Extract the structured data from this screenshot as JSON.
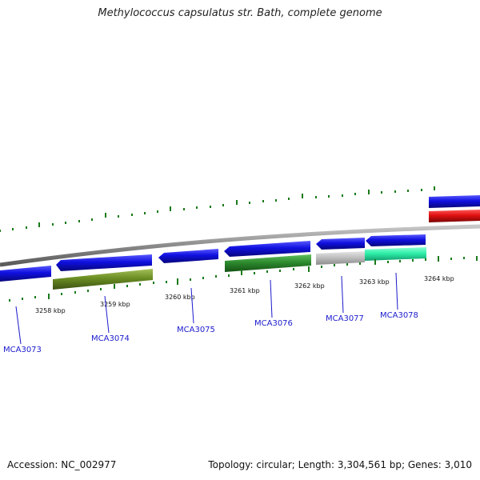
{
  "title": "Methylococcus capsulatus str. Bath, complete genome",
  "footer": {
    "accession": "Accession: NC_002977",
    "summary": "Topology: circular; Length: 3,304,561 bp; Genes: 3,010"
  },
  "kbp_labels": [
    "3258 kbp",
    "3259 kbp",
    "3260 kbp",
    "3261 kbp",
    "3262 kbp",
    "3263 kbp",
    "3264 kbp"
  ],
  "genes": [
    {
      "id": "MCA3073",
      "label": "MCA3073",
      "strand": "reverse",
      "cog_color": null
    },
    {
      "id": "MCA3074",
      "label": "MCA3074",
      "strand": "reverse",
      "cog_color": "#6b8e23"
    },
    {
      "id": "MCA3075",
      "label": "MCA3075",
      "strand": "reverse",
      "cog_color": null
    },
    {
      "id": "MCA3076",
      "label": "MCA3076",
      "strand": "reverse",
      "cog_color": "#2e8b2e"
    },
    {
      "id": "MCA3077",
      "label": "MCA3077",
      "strand": "reverse",
      "cog_color": "#c0c0c0"
    },
    {
      "id": "MCA3078",
      "label": "MCA3078",
      "strand": "reverse",
      "cog_color": "#2ef0a8"
    }
  ],
  "colors": {
    "backbone": "#8a8a8a",
    "gene_cds": "#1010e0",
    "outer_forward": "#1010e0",
    "outer_cog": "#e01010",
    "tick": "#1a7a1a",
    "label": "#1a1acc"
  }
}
